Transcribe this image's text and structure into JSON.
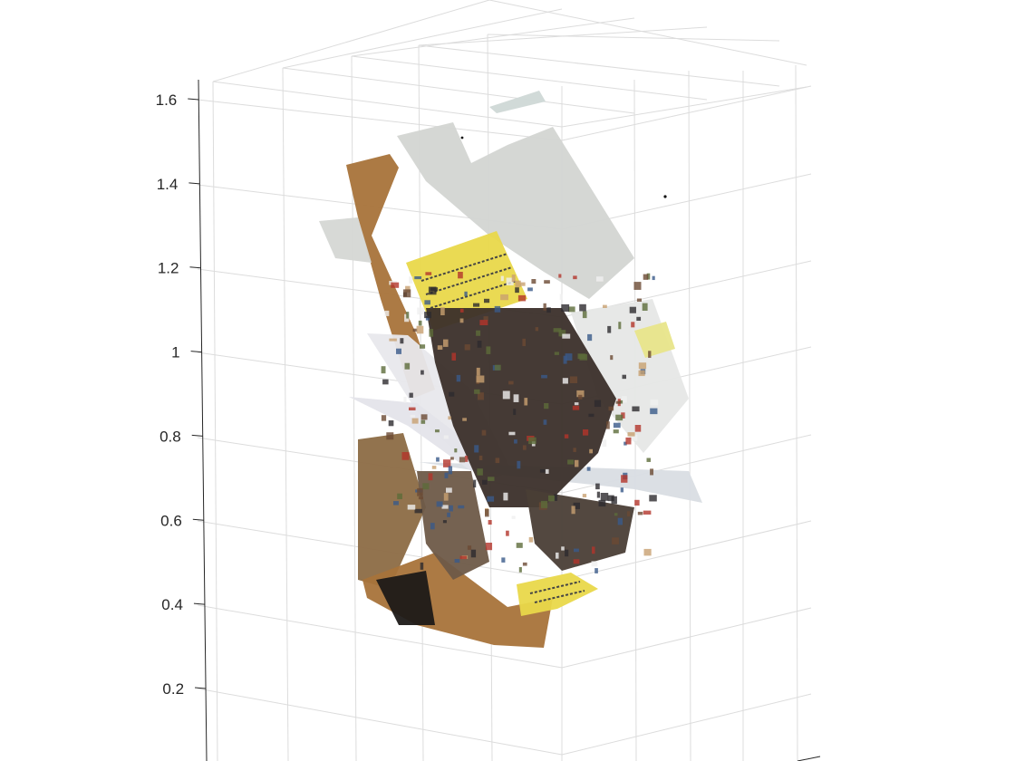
{
  "chart_data": {
    "type": "scatter",
    "projection": "3d",
    "title": "",
    "xlabel": "",
    "ylabel": "",
    "zlabel": "",
    "zlim": [
      0.2,
      1.6
    ],
    "z_ticks": [
      0.2,
      0.4,
      0.6,
      0.8,
      1,
      1.2,
      1.4,
      1.6
    ],
    "z_tick_labels": [
      "0.2",
      "0.4",
      "0.6",
      "0.8",
      "1",
      "1.2",
      "1.4",
      "1.6"
    ],
    "grid": true,
    "legend": "none",
    "content": "RGB-colored point cloud of a cluttered desk scene",
    "colors": {
      "grid": "#dcdcdc",
      "axis": "#262626",
      "wood": "#a8733a",
      "paper_yellow": "#e9d84a",
      "wall_gray": "#d3d5d2",
      "white_paper": "#e8e8ec",
      "dark_clutter": "#3b2f2a"
    }
  }
}
